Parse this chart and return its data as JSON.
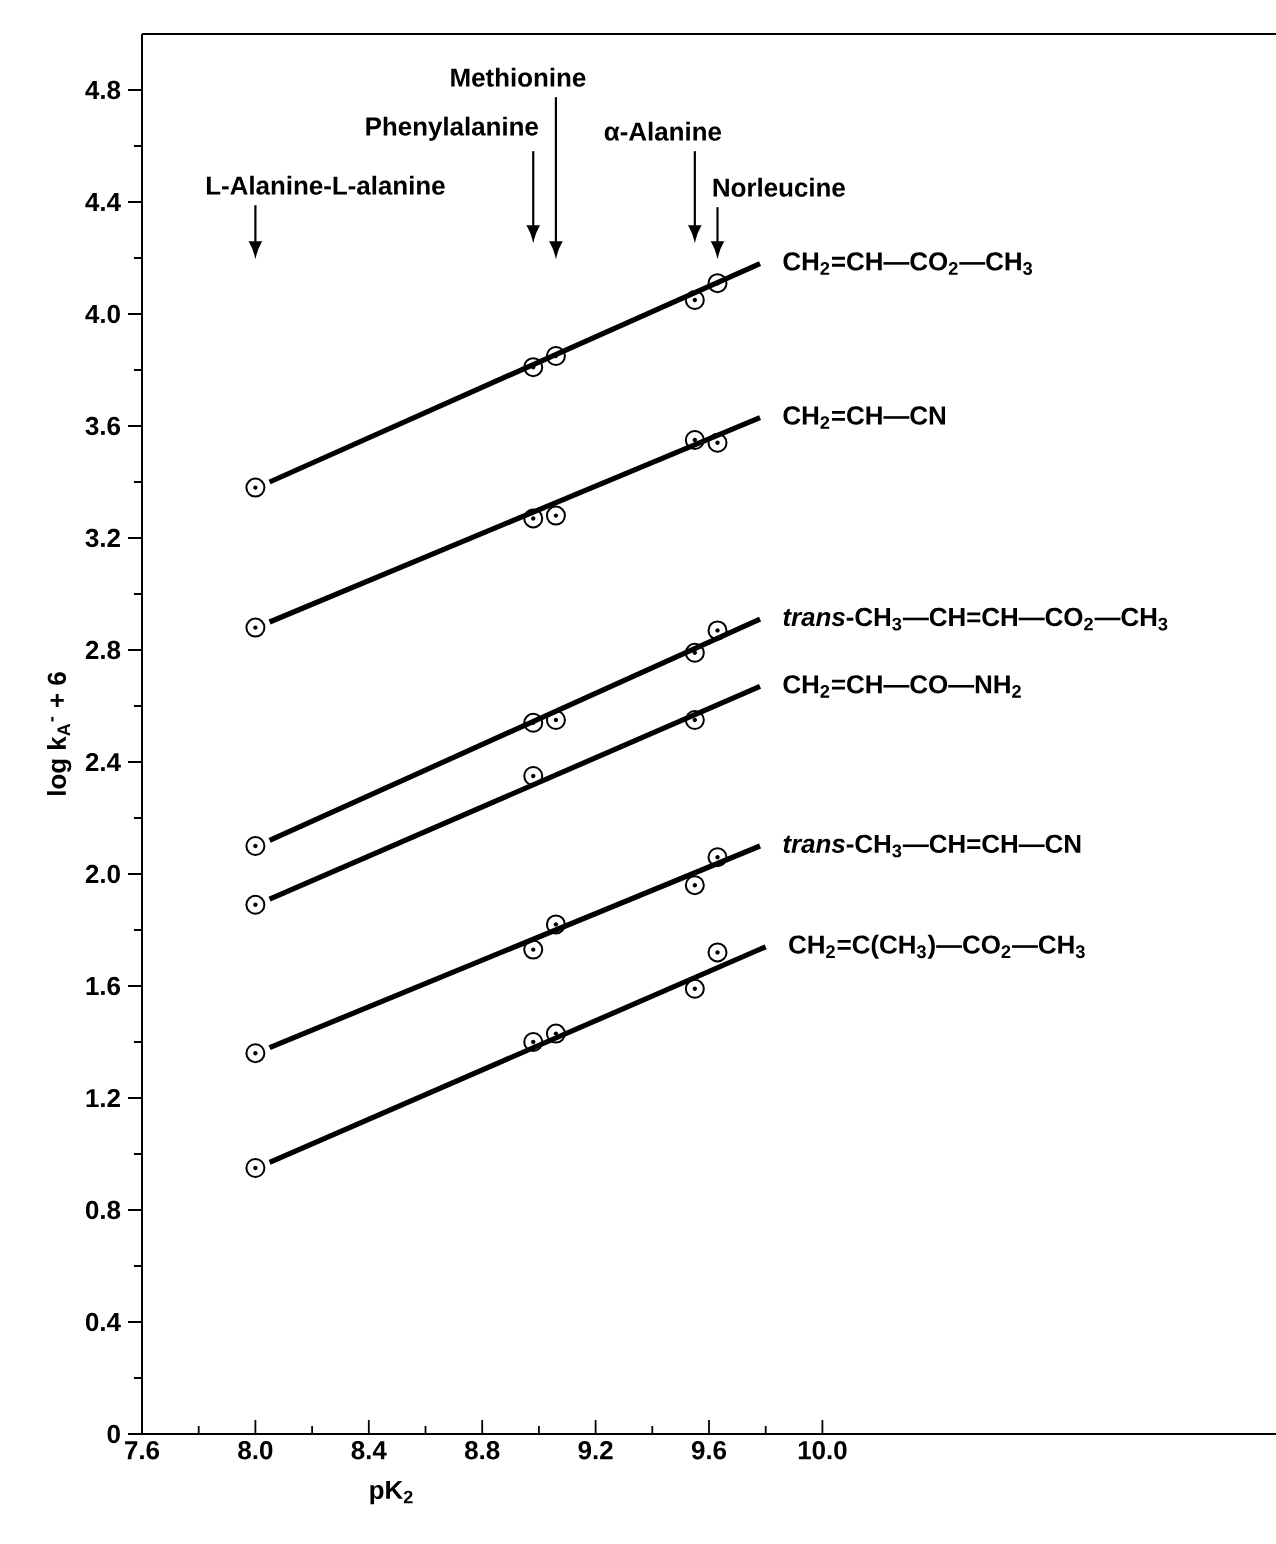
{
  "chart_data": {
    "type": "scatter",
    "xlabel": "pK$_{2}$",
    "ylabel": "log k$_{A}$$^{-}$ + 6",
    "marker": "circle",
    "xlim": [
      7.6,
      11.6
    ],
    "ylim": [
      0,
      5.0
    ],
    "xticks": [
      {
        "value": 7.6,
        "label": "7.6"
      },
      {
        "value": 8.0,
        "label": "8.0"
      },
      {
        "value": 8.4,
        "label": "8.4"
      },
      {
        "value": 8.8,
        "label": "8.8"
      },
      {
        "value": 9.2,
        "label": "9.2"
      },
      {
        "value": 9.6,
        "label": "9.6"
      },
      {
        "value": 10.0,
        "label": "10.0"
      }
    ],
    "yticks": [
      0,
      0.4,
      0.8,
      1.2,
      1.6,
      {
        "value": 2.0,
        "label": "2.0"
      },
      2.4,
      2.8,
      3.2,
      3.6,
      {
        "value": 4.0,
        "label": "4.0"
      },
      4.4,
      4.8
    ],
    "series": [
      {
        "color": "#000000",
        "x": [
          8.0,
          8.98,
          9.06,
          9.55,
          9.63
        ],
        "values": [
          3.38,
          3.81,
          3.85,
          4.05,
          4.11
        ]
      },
      {
        "type": "line",
        "marker": "none",
        "name": "CH$_{2}$=CH—CO$_{2}$—CH$_{3}$",
        "color": "#000000",
        "x": [
          8.05,
          9.78
        ],
        "values": [
          3.4,
          4.18
        ]
      },
      {
        "color": "#000000",
        "x": [
          8.0,
          8.98,
          9.06,
          9.55,
          9.63
        ],
        "values": [
          2.88,
          3.27,
          3.28,
          3.55,
          3.54
        ]
      },
      {
        "type": "line",
        "marker": "none",
        "name": "CH$_{2}$=CH—CN",
        "color": "#000000",
        "x": [
          8.05,
          9.78
        ],
        "values": [
          2.9,
          3.63
        ]
      },
      {
        "color": "#000000",
        "x": [
          8.0,
          8.98,
          9.06,
          9.55,
          9.63
        ],
        "values": [
          2.1,
          2.54,
          2.55,
          2.79,
          2.87
        ]
      },
      {
        "type": "line",
        "marker": "none",
        "name": "*trans*-CH$_{3}$—CH=CH—CO$_{2}$—CH$_{3}$",
        "color": "#000000",
        "x": [
          8.05,
          9.78
        ],
        "values": [
          2.12,
          2.91
        ]
      },
      {
        "color": "#000000",
        "x": [
          8.0,
          8.98,
          9.55
        ],
        "values": [
          1.89,
          2.35,
          2.55
        ]
      },
      {
        "type": "line",
        "marker": "none",
        "name": "CH$_{2}$=CH—CO—NH$_{2}$",
        "color": "#000000",
        "x": [
          8.05,
          9.78
        ],
        "values": [
          1.91,
          2.67
        ]
      },
      {
        "color": "#000000",
        "x": [
          8.0,
          8.98,
          9.06,
          9.55,
          9.63
        ],
        "values": [
          1.36,
          1.73,
          1.82,
          1.96,
          2.06
        ]
      },
      {
        "type": "line",
        "marker": "none",
        "name": "*trans*-CH$_{3}$—CH=CH—CN",
        "color": "#000000",
        "x": [
          8.05,
          9.78
        ],
        "values": [
          1.38,
          2.1
        ]
      },
      {
        "color": "#000000",
        "x": [
          8.0,
          8.98,
          9.06,
          9.55,
          9.63
        ],
        "values": [
          0.95,
          1.4,
          1.43,
          1.59,
          1.72
        ]
      },
      {
        "type": "line",
        "marker": "none",
        "name": "CH$_{2}$=C(CH$_{3}$)—CO$_{2}$—CH$_{3}$",
        "color": "#000000",
        "x": [
          8.05,
          9.8
        ],
        "values": [
          0.97,
          1.74
        ]
      }
    ],
    "annotations": [
      "L-Alanine-L-alanine",
      "Phenylalanine",
      "Methionine",
      "α-Alanine",
      "Norleucine"
    ]
  }
}
